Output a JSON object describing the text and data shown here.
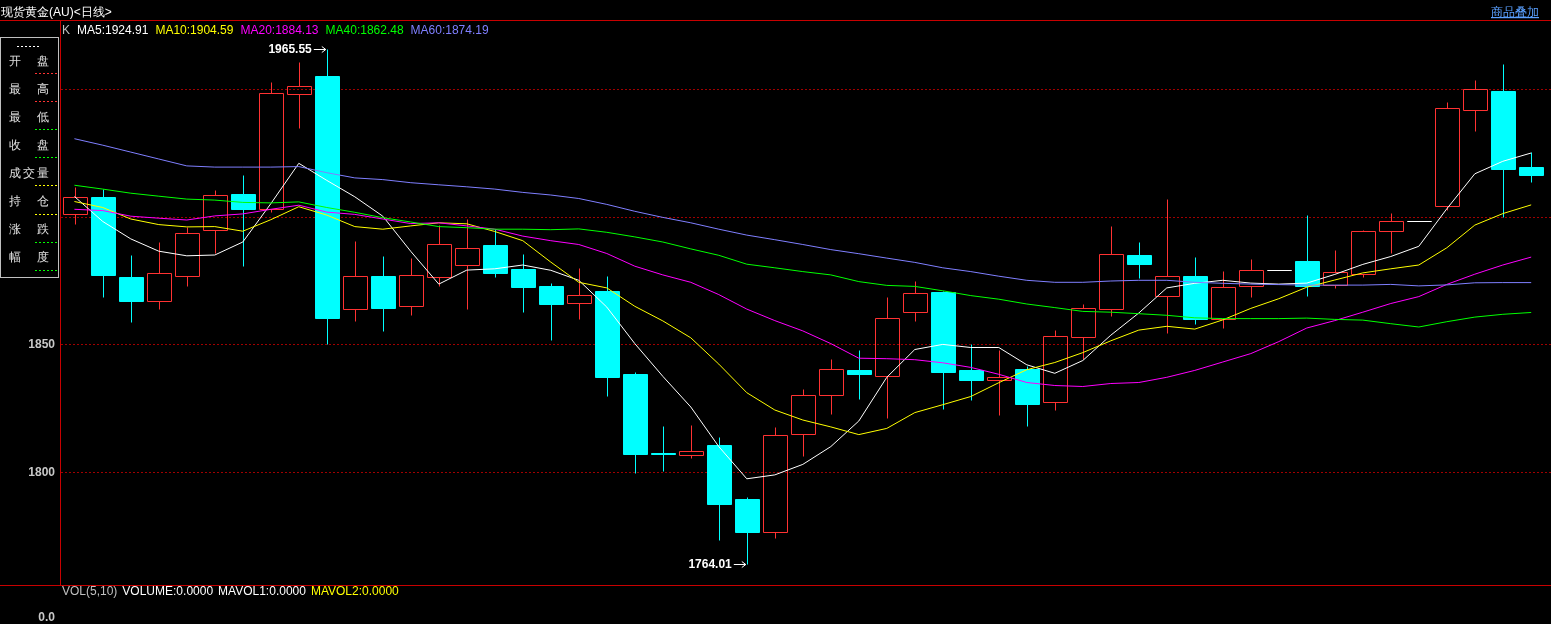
{
  "chart_data": {
    "type": "candlestick",
    "title": "现货黄金(AU)<日线>",
    "legend_title": "K",
    "legend": "top left",
    "grid": "y",
    "tick_labels": "y",
    "ylim": [
      1756,
      1977
    ],
    "yticks": [
      1800,
      1850,
      {
        "value": 1900,
        "label": null
      },
      {
        "value": 1950,
        "label": null
      }
    ],
    "categories": [
      null,
      null,
      null,
      null,
      null,
      null,
      null,
      null,
      null,
      null,
      null,
      null,
      null,
      null,
      null,
      null,
      null,
      null,
      null,
      null,
      null,
      null,
      null,
      null,
      null,
      null,
      null,
      null,
      null,
      null,
      null,
      null,
      null,
      null,
      null,
      null,
      null,
      null,
      null,
      null,
      null,
      null,
      null,
      null,
      null,
      null,
      null,
      null,
      null,
      null,
      null,
      null,
      null
    ],
    "ohlc": [
      [
        1901.1,
        1911.6,
        1897.3,
        1907.7
      ],
      [
        1907.7,
        1910.7,
        1868.6,
        1877.0
      ],
      [
        1876.4,
        1885.0,
        1858.9,
        1867.1
      ],
      [
        1866.8,
        1890.1,
        1863.7,
        1877.8
      ],
      [
        1876.6,
        1896.1,
        1872.7,
        1893.6
      ],
      [
        1894.6,
        1910.5,
        1885.9,
        1908.4
      ],
      [
        1908.9,
        1916.4,
        1880.6,
        1903.2
      ],
      [
        1902.9,
        1952.9,
        1901.8,
        1948.6
      ],
      [
        1948.1,
        1960.4,
        1934.7,
        1951.1
      ],
      [
        1954.9,
        1965.55,
        1850.0,
        1860.5
      ],
      [
        1863.8,
        1890.6,
        1859.3,
        1876.7
      ],
      [
        1876.7,
        1884.7,
        1855.4,
        1864.4
      ],
      [
        1865.2,
        1883.8,
        1861.6,
        1877.0
      ],
      [
        1876.3,
        1896.7,
        1872.8,
        1889.2
      ],
      [
        1880.9,
        1899.1,
        1863.7,
        1887.7
      ],
      [
        1889.1,
        1895.1,
        1876.3,
        1878.1
      ],
      [
        1879.6,
        1885.2,
        1862.8,
        1872.4
      ],
      [
        1872.8,
        1874.0,
        1851.8,
        1865.9
      ],
      [
        1866.1,
        1880.0,
        1860.1,
        1869.2
      ],
      [
        1870.9,
        1876.6,
        1829.9,
        1837.2
      ],
      [
        1838.4,
        1839.0,
        1799.7,
        1807.0
      ],
      [
        1807.6,
        1818.0,
        1800.3,
        1807.0
      ],
      [
        1806.6,
        1818.3,
        1805.4,
        1808.1
      ],
      [
        1810.8,
        1813.9,
        1773.5,
        1787.5
      ],
      [
        1789.3,
        1790.1,
        1764.01,
        1776.4
      ],
      [
        1776.4,
        1817.5,
        1774.4,
        1814.7
      ],
      [
        1815.0,
        1832.7,
        1806.3,
        1830.0
      ],
      [
        1830.0,
        1844.1,
        1822.8,
        1840.5
      ],
      [
        1839.9,
        1848.0,
        1828.5,
        1838.4
      ],
      [
        1837.8,
        1868.6,
        1821.3,
        1860.5
      ],
      [
        1862.6,
        1874.9,
        1859.3,
        1870.0
      ],
      [
        1870.4,
        1871.0,
        1824.6,
        1839.2
      ],
      [
        1839.8,
        1850.0,
        1828.2,
        1836.2
      ],
      [
        1836.2,
        1847.7,
        1822.5,
        1837.4
      ],
      [
        1840.2,
        1841.7,
        1818.0,
        1826.7
      ],
      [
        1827.6,
        1855.6,
        1824.3,
        1853.2
      ],
      [
        1852.7,
        1865.8,
        1844.1,
        1864.1
      ],
      [
        1863.7,
        1896.4,
        1861.3,
        1885.3
      ],
      [
        1885.0,
        1890.1,
        1876.1,
        1881.3
      ],
      [
        1868.8,
        1906.9,
        1854.5,
        1876.7
      ],
      [
        1876.7,
        1884.3,
        1858.1,
        1860.1
      ],
      [
        1860.1,
        1878.7,
        1856.6,
        1872.4
      ],
      [
        1872.7,
        1883.5,
        1868.6,
        1879.0
      ],
      [
        1879.0,
        1879.0,
        1879.0,
        1879.0
      ],
      [
        1882.7,
        1900.6,
        1869.1,
        1872.7
      ],
      [
        1873.3,
        1886.9,
        1872.1,
        1878.2
      ],
      [
        1877.7,
        1894.8,
        1876.3,
        1894.4
      ],
      [
        1894.4,
        1901.4,
        1885.8,
        1898.2
      ],
      [
        1898.4,
        1898.4,
        1898.4,
        1898.4
      ],
      [
        1904.0,
        1944.9,
        1902.8,
        1942.4
      ],
      [
        1941.7,
        1953.5,
        1933.7,
        1949.9
      ],
      [
        1949.1,
        1959.9,
        1900.0,
        1918.5
      ],
      [
        1919.4,
        1925.2,
        1913.7,
        1916.5
      ]
    ],
    "colors": [
      "#ff3232",
      "#00ffff",
      "#00ffff",
      "#ff3232",
      "#ff3232",
      "#ff3232",
      "#00ffff",
      "#ff3232",
      "#ff3232",
      "#00ffff",
      "#ff3232",
      "#00ffff",
      "#ff3232",
      "#ff3232",
      "#ff3232",
      "#00ffff",
      "#00ffff",
      "#00ffff",
      "#ff3232",
      "#00ffff",
      "#00ffff",
      "#00ffff",
      "#ff3232",
      "#00ffff",
      "#00ffff",
      "#ff3232",
      "#ff3232",
      "#ff3232",
      "#00ffff",
      "#ff3232",
      "#ff3232",
      "#00ffff",
      "#00ffff",
      "#ff3232",
      "#00ffff",
      "#ff3232",
      "#ff3232",
      "#ff3232",
      "#00ffff",
      "#ff3232",
      "#00ffff",
      "#ff3232",
      "#ff3232",
      "#ffffff",
      "#00ffff",
      "#ff3232",
      "#ff3232",
      "#ff3232",
      "#ffffff",
      "#ff3232",
      "#ff3232",
      "#00ffff",
      "#00ffff"
    ],
    "series": [
      {
        "name": "MA5:1924.91",
        "type": "line",
        "color": "#ffffff",
        "values": [
          1907.8,
          1898.1,
          1891.3,
          1886.5,
          1884.7,
          1885.0,
          1890.1,
          1905.1,
          1920.9,
          1914.2,
          1907.8,
          1900.2,
          1886.4,
          1873.6,
          1879.1,
          1879.6,
          1881.1,
          1879.0,
          1875.1,
          1864.6,
          1850.3,
          1837.5,
          1825.5,
          1810.0,
          1797.4,
          1798.9,
          1803.0,
          1810.0,
          1820.0,
          1837.1,
          1848.0,
          1850.0,
          1848.8,
          1848.8,
          1842.0,
          1838.7,
          1843.7,
          1853.6,
          1862.3,
          1872.1,
          1873.9,
          1875.1,
          1874.0,
          1873.6,
          1874.0,
          1877.4,
          1881.3,
          1884.4,
          1888.4,
          1903.1,
          1916.8,
          1921.7,
          1924.91
        ]
      },
      {
        "name": "MA10:1904.59",
        "type": "line",
        "color": "#ffff00",
        "values": [
          1905.9,
          1903.6,
          1899.1,
          1896.9,
          1896.0,
          1896.1,
          1894.3,
          1898.8,
          1903.9,
          1900.6,
          1896.1,
          1895.1,
          1896.4,
          1897.6,
          1897.2,
          1894.2,
          1890.6,
          1882.2,
          1874.3,
          1872.1,
          1864.9,
          1859.2,
          1852.6,
          1842.3,
          1831.1,
          1824.3,
          1820.4,
          1817.7,
          1814.7,
          1817.1,
          1823.3,
          1826.4,
          1829.6,
          1835.0,
          1840.1,
          1842.9,
          1846.8,
          1851.4,
          1855.6,
          1857.1,
          1856.0,
          1859.6,
          1864.1,
          1867.9,
          1872.4,
          1875.2,
          1878.0,
          1879.6,
          1881.1,
          1887.8,
          1896.7,
          1901.2,
          1904.59
        ]
      },
      {
        "name": "MA20:1884.13",
        "type": "line",
        "color": "#ff00ff",
        "values": [
          1902.9,
          1902.4,
          1900.2,
          1899.4,
          1898.7,
          1900.3,
          1901.1,
          1902.9,
          1904.5,
          1901.8,
          1900.9,
          1899.1,
          1897.3,
          1897.6,
          1896.4,
          1895.1,
          1892.4,
          1890.6,
          1889.1,
          1885.6,
          1880.6,
          1877.2,
          1874.3,
          1869.5,
          1863.8,
          1859.3,
          1855.3,
          1850.3,
          1844.6,
          1844.4,
          1844.0,
          1842.8,
          1841.0,
          1838.3,
          1835.1,
          1833.9,
          1833.5,
          1834.7,
          1835.1,
          1837.1,
          1839.8,
          1843.1,
          1846.4,
          1851.1,
          1856.4,
          1859.3,
          1862.6,
          1866.0,
          1868.7,
          1873.5,
          1877.5,
          1881.1,
          1884.13
        ]
      },
      {
        "name": "MA40:1862.48",
        "type": "line",
        "color": "#00ff00",
        "values": [
          1912.3,
          1910.8,
          1909.2,
          1908.0,
          1906.9,
          1906.5,
          1905.6,
          1905.4,
          1905.8,
          1903.6,
          1901.7,
          1899.6,
          1897.9,
          1896.1,
          1895.7,
          1895.1,
          1895.1,
          1894.9,
          1895.2,
          1893.9,
          1892.1,
          1890.1,
          1887.4,
          1884.9,
          1881.4,
          1880.0,
          1878.5,
          1877.2,
          1874.6,
          1873.1,
          1872.7,
          1871.0,
          1869.1,
          1867.7,
          1865.8,
          1864.4,
          1862.9,
          1862.6,
          1862.0,
          1861.4,
          1860.4,
          1860.1,
          1860.1,
          1860.1,
          1860.3,
          1859.8,
          1859.5,
          1858.1,
          1856.8,
          1858.9,
          1860.7,
          1861.8,
          1862.48
        ]
      },
      {
        "name": "MA60:1874.19",
        "type": "line",
        "color": "#7f7fff",
        "values": [
          1930.5,
          1928.0,
          1925.3,
          1922.6,
          1919.9,
          1919.4,
          1919.4,
          1919.4,
          1919.6,
          1917.2,
          1915.2,
          1914.5,
          1913.3,
          1912.5,
          1911.7,
          1910.8,
          1909.5,
          1908.5,
          1907.1,
          1904.8,
          1902.1,
          1899.7,
          1897.6,
          1895.1,
          1892.8,
          1891.0,
          1889.1,
          1887.1,
          1885.5,
          1883.8,
          1882.1,
          1880.0,
          1878.5,
          1876.7,
          1875.1,
          1874.3,
          1874.3,
          1874.8,
          1875.1,
          1875.1,
          1874.3,
          1873.9,
          1873.6,
          1873.4,
          1873.2,
          1873.2,
          1873.2,
          1873.5,
          1872.9,
          1873.3,
          1874.1,
          1874.2,
          1874.19
        ]
      }
    ],
    "annotations": [
      "1965.55",
      "1764.01",
      "开 盘",
      "最 高",
      "最 低",
      "收 盘",
      "成交量",
      "持 仓",
      "涨 跌",
      "幅 度",
      "商品叠加",
      "VOL(5,10)",
      "VOLUME:0.0000",
      "MAVOL1:0.0000",
      "MAVOL2:0.0000",
      "0.0"
    ]
  }
}
